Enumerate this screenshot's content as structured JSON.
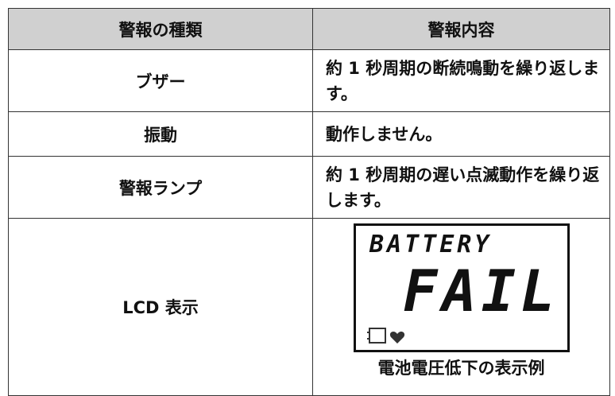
{
  "table": {
    "header": [
      "警報の種類",
      "警報内容"
    ],
    "rows": [
      {
        "type": "ブザー",
        "content": "約 1 秒周期の断続鳴動を繰り返します。"
      },
      {
        "type": "振動",
        "content": "動作しません。"
      },
      {
        "type": "警報ランプ",
        "content": "約 1 秒周期の遅い点滅動作を繰り返します。"
      },
      {
        "type": "LCD 表示"
      }
    ]
  },
  "lcd": {
    "line1": "BATTERY",
    "line2": "FAIL",
    "caption": "電池電圧低下の表示例"
  }
}
